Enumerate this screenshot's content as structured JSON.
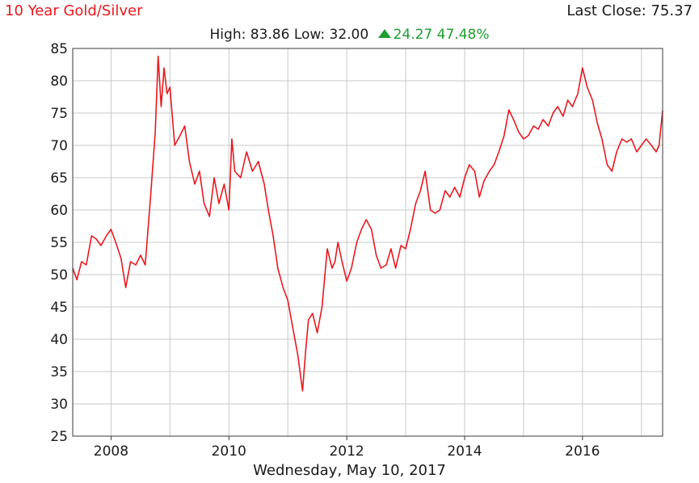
{
  "header": {
    "title": "10 Year Gold/Silver",
    "last_close_label": "Last Close:",
    "last_close_value": "75.37",
    "high_label": "High:",
    "high_value": "83.86",
    "low_label": "Low:",
    "low_value": "32.00",
    "change_value": "24.27",
    "change_percent": "47.48%",
    "date": "Wednesday, May 10, 2017"
  },
  "colors": {
    "line": "#e8191f",
    "title": "#e8191f",
    "change_up": "#1e9e2e",
    "grid": "#c8c8c8"
  },
  "icons": {
    "change_direction": "up-triangle-icon"
  },
  "chart_data": {
    "type": "line",
    "title": "10 Year Gold/Silver",
    "xlabel": "",
    "ylabel": "",
    "grid": true,
    "ylim": [
      25,
      85
    ],
    "xlim": [
      2007.35,
      2017.36
    ],
    "x_tick_labels": [
      "2008",
      "2010",
      "2012",
      "2014",
      "2016"
    ],
    "y_tick_labels": [
      "25",
      "30",
      "35",
      "40",
      "45",
      "50",
      "55",
      "60",
      "65",
      "70",
      "75",
      "80",
      "85"
    ],
    "series": [
      {
        "x": [
          2007.35,
          2007.42,
          2007.5,
          2007.58,
          2007.67,
          2007.75,
          2007.83,
          2007.92,
          2008.0,
          2008.08,
          2008.17,
          2008.25,
          2008.33,
          2008.42,
          2008.5,
          2008.58,
          2008.67,
          2008.75,
          2008.8,
          2008.85,
          2008.9,
          2008.95,
          2009.0,
          2009.08,
          2009.17,
          2009.25,
          2009.33,
          2009.42,
          2009.5,
          2009.58,
          2009.67,
          2009.75,
          2009.83,
          2009.92,
          2010.0,
          2010.05,
          2010.1,
          2010.2,
          2010.3,
          2010.4,
          2010.5,
          2010.6,
          2010.67,
          2010.75,
          2010.83,
          2010.92,
          2011.0,
          2011.08,
          2011.17,
          2011.25,
          2011.3,
          2011.35,
          2011.42,
          2011.5,
          2011.58,
          2011.67,
          2011.75,
          2011.8,
          2011.85,
          2011.92,
          2012.0,
          2012.08,
          2012.17,
          2012.25,
          2012.33,
          2012.42,
          2012.5,
          2012.58,
          2012.67,
          2012.75,
          2012.83,
          2012.92,
          2013.0,
          2013.08,
          2013.17,
          2013.25,
          2013.33,
          2013.42,
          2013.5,
          2013.58,
          2013.67,
          2013.75,
          2013.83,
          2013.92,
          2014.0,
          2014.08,
          2014.17,
          2014.25,
          2014.33,
          2014.42,
          2014.5,
          2014.58,
          2014.67,
          2014.75,
          2014.83,
          2014.92,
          2015.0,
          2015.08,
          2015.17,
          2015.25,
          2015.33,
          2015.42,
          2015.5,
          2015.58,
          2015.67,
          2015.75,
          2015.83,
          2015.92,
          2016.0,
          2016.08,
          2016.17,
          2016.25,
          2016.33,
          2016.42,
          2016.5,
          2016.58,
          2016.67,
          2016.75,
          2016.83,
          2016.92,
          2017.0,
          2017.08,
          2017.17,
          2017.25,
          2017.3,
          2017.36
        ],
        "y": [
          51,
          49.2,
          52,
          51.5,
          56,
          55.5,
          54.5,
          56,
          57,
          55,
          52.5,
          48,
          52,
          51.5,
          53,
          51.5,
          62,
          72,
          83.8,
          76,
          82,
          78,
          79,
          70,
          71.5,
          73,
          67.5,
          64,
          66,
          61,
          59,
          65,
          61,
          64,
          60,
          71,
          66,
          65,
          69,
          66,
          67.5,
          64,
          60,
          56,
          51,
          48,
          46,
          42,
          37.5,
          32,
          38,
          43,
          44,
          41,
          45,
          54,
          51,
          52,
          55,
          52,
          49,
          51,
          55,
          57,
          58.5,
          57,
          53,
          51,
          51.5,
          54,
          51,
          54.5,
          54,
          57,
          61,
          63,
          66,
          60,
          59.5,
          60,
          63,
          62,
          63.5,
          62,
          65,
          67,
          66,
          62,
          64.5,
          66,
          67,
          69,
          71.5,
          75.5,
          74,
          72,
          71,
          71.5,
          73,
          72.5,
          74,
          73,
          75,
          76,
          74.5,
          77,
          76,
          78,
          82,
          79,
          77,
          73.5,
          71,
          67,
          66,
          69,
          71,
          70.5,
          71,
          69,
          70,
          71,
          70,
          69,
          70,
          75.4
        ]
      }
    ]
  }
}
